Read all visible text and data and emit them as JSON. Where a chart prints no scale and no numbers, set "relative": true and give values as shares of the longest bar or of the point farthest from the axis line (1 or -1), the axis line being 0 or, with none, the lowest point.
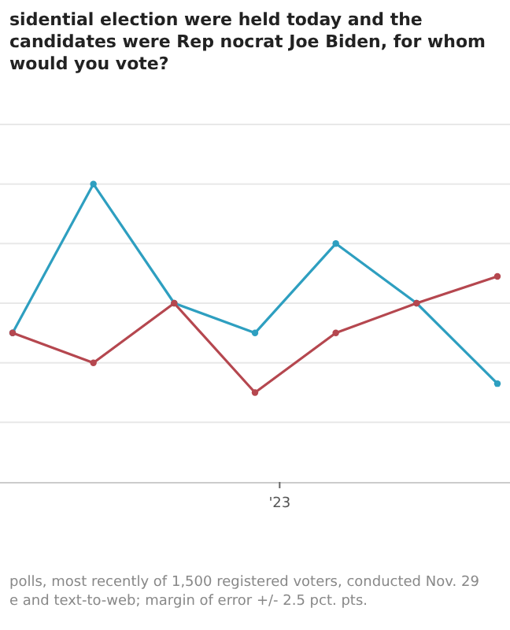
{
  "chart_data": {
    "type": "line",
    "title": "sidential election were held today and the candidates were Rep nocrat Joe Biden, for whom would you vote?",
    "relative": true,
    "categories": [
      null,
      null,
      null,
      null,
      null,
      null,
      null
    ],
    "grid": "y",
    "marker": "circle",
    "series": [
      {
        "color": "#2e9fc0",
        "values": [
          0.5,
          1,
          0.6,
          0.5,
          0.8,
          0.6,
          0.33
        ]
      },
      {
        "color": "#b5474f",
        "values": [
          0.5,
          0.4,
          0.6,
          0.3,
          0.5,
          0.6,
          0.69
        ]
      }
    ],
    "annotations": [
      "'23",
      "polls, most recently of 1,500 registered voters, conducted Nov. 29",
      "e and text-to-web; margin of error +/- 2.5 pct. pts."
    ]
  }
}
